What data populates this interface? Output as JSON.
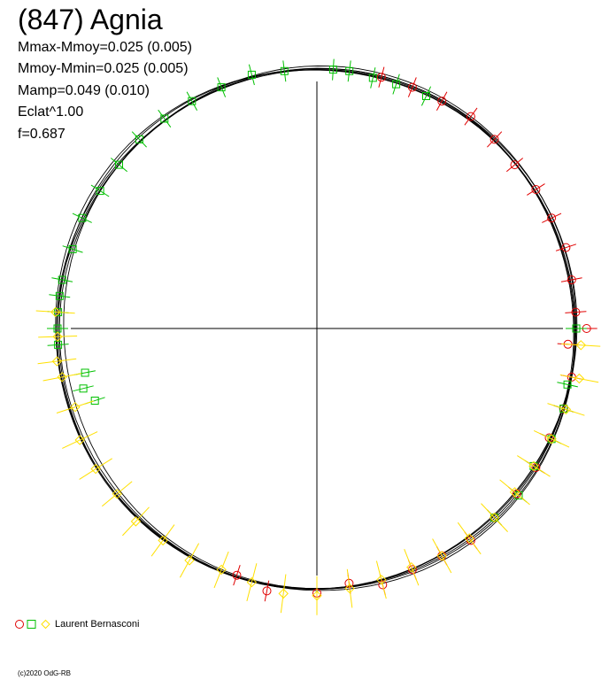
{
  "title": "(847) Agnia",
  "stats": [
    "Mmax-Mmoy=0.025 (0.005)",
    "Mmoy-Mmin=0.025 (0.005)",
    "Mamp=0.049 (0.010)",
    "Eclat^1.00",
    "f=0.687"
  ],
  "legend": {
    "author": "Laurent Bernasconi"
  },
  "copyright": "(c)2020 OdG-RB",
  "colors": {
    "series_circle": "#e00000",
    "series_square": "#00c000",
    "series_diamond": "#ffe000",
    "axes": "#000000",
    "fit": "#000000"
  },
  "chart_data": {
    "type": "scatter",
    "coordinate_system": "polar-phase",
    "center_magnitude_ratio": 1.0,
    "amplitude_mag": 0.049,
    "series": [
      {
        "marker": "circle",
        "color": "#e00000",
        "points": [
          {
            "phase": 0.04,
            "r": 1.0
          },
          {
            "phase": 0.06,
            "r": 1.0
          },
          {
            "phase": 0.08,
            "r": 1.0
          },
          {
            "phase": 0.1,
            "r": 1.01
          },
          {
            "phase": 0.12,
            "r": 1.0
          },
          {
            "phase": 0.14,
            "r": 0.99
          },
          {
            "phase": 0.16,
            "r": 1.0
          },
          {
            "phase": 0.18,
            "r": 1.0
          },
          {
            "phase": 0.2,
            "r": 1.01
          },
          {
            "phase": 0.22,
            "r": 1.0
          },
          {
            "phase": 0.24,
            "r": 1.0
          },
          {
            "phase": 0.25,
            "r": 1.04
          },
          {
            "phase": 0.26,
            "r": 0.97
          },
          {
            "phase": 0.28,
            "r": 1.0
          },
          {
            "phase": 0.3,
            "r": 1.0
          },
          {
            "phase": 0.32,
            "r": 0.99
          },
          {
            "phase": 0.34,
            "r": 1.0
          },
          {
            "phase": 0.36,
            "r": 1.0
          },
          {
            "phase": 0.38,
            "r": 1.0
          },
          {
            "phase": 0.4,
            "r": 1.01
          },
          {
            "phase": 0.42,
            "r": 1.0
          },
          {
            "phase": 0.44,
            "r": 1.0
          },
          {
            "phase": 0.46,
            "r": 1.02
          },
          {
            "phase": 0.48,
            "r": 0.99
          },
          {
            "phase": 0.5,
            "r": 1.02
          },
          {
            "phase": 0.53,
            "r": 1.03
          },
          {
            "phase": 0.55,
            "r": 1.0
          }
        ]
      },
      {
        "marker": "square",
        "color": "#00c000",
        "points": [
          {
            "phase": 0.7,
            "r": 0.9
          },
          {
            "phase": 0.71,
            "r": 0.93
          },
          {
            "phase": 0.72,
            "r": 0.91
          },
          {
            "phase": 0.74,
            "r": 1.0
          },
          {
            "phase": 0.75,
            "r": 1.0
          },
          {
            "phase": 0.76,
            "r": 1.0
          },
          {
            "phase": 0.77,
            "r": 1.0
          },
          {
            "phase": 0.78,
            "r": 1.0
          },
          {
            "phase": 0.8,
            "r": 0.99
          },
          {
            "phase": 0.82,
            "r": 1.0
          },
          {
            "phase": 0.84,
            "r": 0.99
          },
          {
            "phase": 0.86,
            "r": 0.99
          },
          {
            "phase": 0.88,
            "r": 1.0
          },
          {
            "phase": 0.9,
            "r": 1.0
          },
          {
            "phase": 0.92,
            "r": 1.0
          },
          {
            "phase": 0.94,
            "r": 1.0
          },
          {
            "phase": 0.96,
            "r": 1.01
          },
          {
            "phase": 0.98,
            "r": 1.0
          },
          {
            "phase": 0.01,
            "r": 1.0
          },
          {
            "phase": 0.02,
            "r": 1.0
          },
          {
            "phase": 0.035,
            "r": 0.99
          },
          {
            "phase": 0.05,
            "r": 0.99
          },
          {
            "phase": 0.07,
            "r": 0.99
          },
          {
            "phase": 0.25,
            "r": 1.0
          },
          {
            "phase": 0.285,
            "r": 0.99
          },
          {
            "phase": 0.3,
            "r": 1.0
          },
          {
            "phase": 0.32,
            "r": 1.0
          },
          {
            "phase": 0.34,
            "r": 0.99
          },
          {
            "phase": 0.36,
            "r": 1.01
          },
          {
            "phase": 0.38,
            "r": 1.0
          }
        ]
      },
      {
        "marker": "diamond",
        "color": "#ffe000",
        "points": [
          {
            "phase": 0.26,
            "r": 1.02
          },
          {
            "phase": 0.28,
            "r": 1.03
          },
          {
            "phase": 0.3,
            "r": 1.01
          },
          {
            "phase": 0.32,
            "r": 1.0
          },
          {
            "phase": 0.34,
            "r": 0.99
          },
          {
            "phase": 0.36,
            "r": 0.99
          },
          {
            "phase": 0.38,
            "r": 1.0
          },
          {
            "phase": 0.4,
            "r": 1.0
          },
          {
            "phase": 0.42,
            "r": 1.0
          },
          {
            "phase": 0.44,
            "r": 0.99
          },
          {
            "phase": 0.46,
            "r": 1.0
          },
          {
            "phase": 0.48,
            "r": 1.01
          },
          {
            "phase": 0.5,
            "r": 1.03
          },
          {
            "phase": 0.52,
            "r": 1.03
          },
          {
            "phase": 0.54,
            "r": 1.01
          },
          {
            "phase": 0.56,
            "r": 1.0
          },
          {
            "phase": 0.58,
            "r": 1.02
          },
          {
            "phase": 0.6,
            "r": 1.01
          },
          {
            "phase": 0.62,
            "r": 1.02
          },
          {
            "phase": 0.64,
            "r": 1.0
          },
          {
            "phase": 0.66,
            "r": 1.01
          },
          {
            "phase": 0.68,
            "r": 1.01
          },
          {
            "phase": 0.7,
            "r": 0.98
          },
          {
            "phase": 0.72,
            "r": 1.0
          },
          {
            "phase": 0.73,
            "r": 1.01
          },
          {
            "phase": 0.745,
            "r": 1.0
          },
          {
            "phase": 0.76,
            "r": 1.01
          }
        ]
      }
    ]
  }
}
